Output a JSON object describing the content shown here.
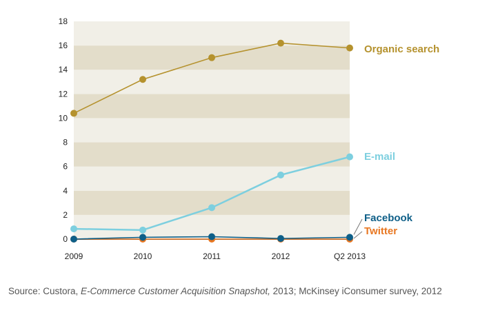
{
  "chart_data": {
    "type": "line",
    "categories": [
      "2009",
      "2010",
      "2011",
      "2012",
      "Q2 2013"
    ],
    "yticks": [
      0,
      2,
      4,
      6,
      8,
      10,
      12,
      14,
      16,
      18
    ],
    "ylim": [
      0,
      18
    ],
    "grid": "horizontal bands",
    "legend": "labels at right end of each line",
    "series": [
      {
        "name": "Organic search",
        "color": "#b5922e",
        "values": [
          10.4,
          13.2,
          15.0,
          16.2,
          15.8
        ]
      },
      {
        "name": "E-mail",
        "color": "#7dcfdf",
        "values": [
          0.85,
          0.75,
          2.6,
          5.3,
          6.8
        ]
      },
      {
        "name": "Facebook",
        "color": "#0e5f88",
        "values": [
          0.0,
          0.15,
          0.2,
          0.05,
          0.15
        ]
      },
      {
        "name": "Twitter",
        "color": "#e87722",
        "values": [
          0.0,
          0.0,
          0.0,
          0.0,
          0.0
        ]
      }
    ]
  },
  "source": {
    "prefix": "Source: Custora, ",
    "title": "E-Commerce Customer Acquisition Snapshot,",
    "suffix": " 2013; McKinsey iConsumer survey, 2012"
  }
}
